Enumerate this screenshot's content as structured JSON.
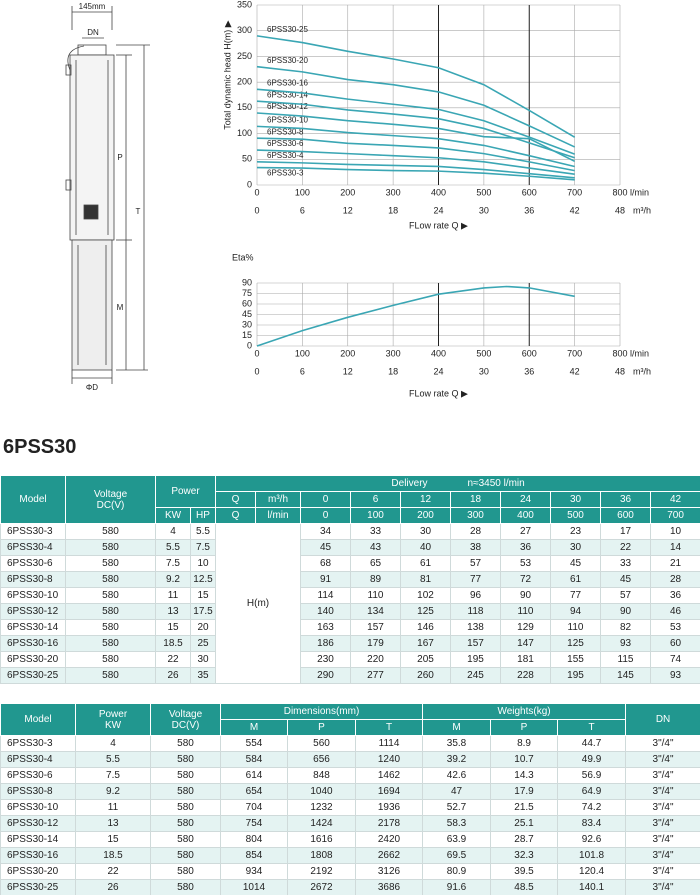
{
  "drawing": {
    "width": "145mm",
    "dn": "DN",
    "p": "P",
    "t": "T",
    "m": "M",
    "d": "ΦD"
  },
  "chart_data": [
    {
      "type": "line",
      "ylabel": "Total dynamic head H(m) ▶",
      "xlabel": "FLow rate Q ▶",
      "xunit": "l/min",
      "x2unit": "m³/h",
      "xlim": [
        0,
        800
      ],
      "xticks": [
        0,
        100,
        200,
        300,
        400,
        500,
        600,
        700,
        800
      ],
      "x2lim": [
        0,
        48
      ],
      "x2ticks": [
        0,
        6,
        12,
        18,
        24,
        30,
        36,
        42,
        48
      ],
      "ylim": [
        0,
        350
      ],
      "yticks": [
        0,
        50,
        100,
        150,
        200,
        250,
        300,
        350
      ],
      "grid": true,
      "highlight_x": [
        400,
        600
      ],
      "x": [
        0,
        100,
        200,
        300,
        400,
        500,
        600,
        700
      ],
      "series": [
        {
          "name": "6PSS30-3",
          "color": "#3aa6b4",
          "values": [
            34,
            33,
            30,
            28,
            27,
            23,
            17,
            10
          ]
        },
        {
          "name": "6PSS30-4",
          "color": "#3aa6b4",
          "values": [
            45,
            43,
            40,
            38,
            36,
            30,
            22,
            14
          ]
        },
        {
          "name": "6PSS30-6",
          "color": "#3aa6b4",
          "values": [
            68,
            65,
            61,
            57,
            53,
            45,
            33,
            21
          ]
        },
        {
          "name": "6PSS30-8",
          "color": "#3aa6b4",
          "values": [
            91,
            89,
            81,
            77,
            72,
            61,
            45,
            28
          ]
        },
        {
          "name": "6PSS30-10",
          "color": "#3aa6b4",
          "values": [
            114,
            110,
            102,
            96,
            90,
            77,
            57,
            36
          ]
        },
        {
          "name": "6PSS30-12",
          "color": "#3aa6b4",
          "values": [
            140,
            134,
            125,
            118,
            110,
            94,
            90,
            46
          ]
        },
        {
          "name": "6PSS30-14",
          "color": "#3aa6b4",
          "values": [
            163,
            157,
            146,
            138,
            129,
            110,
            82,
            53
          ]
        },
        {
          "name": "6PSS30-16",
          "color": "#3aa6b4",
          "values": [
            186,
            179,
            167,
            157,
            147,
            125,
            93,
            60
          ]
        },
        {
          "name": "6PSS30-20",
          "color": "#3aa6b4",
          "values": [
            230,
            220,
            205,
            195,
            181,
            155,
            115,
            74
          ]
        },
        {
          "name": "6PSS30-25",
          "color": "#3aa6b4",
          "values": [
            290,
            277,
            260,
            245,
            228,
            195,
            145,
            93
          ]
        }
      ]
    },
    {
      "type": "line",
      "ylabel": "Eta%",
      "xlabel": "FLow rate Q ▶",
      "xunit": "l/min",
      "x2unit": "m³/h",
      "xlim": [
        0,
        800
      ],
      "xticks": [
        0,
        100,
        200,
        300,
        400,
        500,
        600,
        700,
        800
      ],
      "x2lim": [
        0,
        48
      ],
      "x2ticks": [
        0,
        6,
        12,
        18,
        24,
        30,
        36,
        42,
        48
      ],
      "ylim": [
        0,
        90
      ],
      "yticks": [
        0,
        15,
        30,
        45,
        60,
        75,
        90
      ],
      "grid": true,
      "highlight_x": [
        400,
        600
      ],
      "x": [
        0,
        100,
        200,
        300,
        400,
        500,
        550,
        600,
        700
      ],
      "values": [
        0,
        22,
        41,
        58,
        74,
        83,
        85,
        83,
        71
      ],
      "color": "#3aa6b4"
    }
  ],
  "title": "6PSS30",
  "table1": {
    "headers": {
      "model": "Model",
      "voltage": "Voltage\nDC(V)",
      "power": "Power",
      "kw": "KW",
      "hp": "HP",
      "delivery": "Delivery",
      "speed": "n≈3450 l/min",
      "q": "Q",
      "m3h": "m³/h",
      "lmin": "l/min",
      "head": "H(m)"
    },
    "q_m3h": [
      0,
      6,
      12,
      18,
      24,
      30,
      36,
      42
    ],
    "q_lmin": [
      0,
      100,
      200,
      300,
      400,
      500,
      600,
      700
    ],
    "rows": [
      [
        "6PSS30-3",
        580,
        4,
        5.5,
        34,
        33,
        30,
        28,
        27,
        23,
        17,
        10
      ],
      [
        "6PSS30-4",
        580,
        5.5,
        7.5,
        45,
        43,
        40,
        38,
        36,
        30,
        22,
        14
      ],
      [
        "6PSS30-6",
        580,
        7.5,
        10,
        68,
        65,
        61,
        57,
        53,
        45,
        33,
        21
      ],
      [
        "6PSS30-8",
        580,
        9.2,
        12.5,
        91,
        89,
        81,
        77,
        72,
        61,
        45,
        28
      ],
      [
        "6PSS30-10",
        580,
        11,
        15,
        114,
        110,
        102,
        96,
        90,
        77,
        57,
        36
      ],
      [
        "6PSS30-12",
        580,
        13,
        17.5,
        140,
        134,
        125,
        118,
        110,
        94,
        90,
        46
      ],
      [
        "6PSS30-14",
        580,
        15,
        20,
        163,
        157,
        146,
        138,
        129,
        110,
        82,
        53
      ],
      [
        "6PSS30-16",
        580,
        18.5,
        25,
        186,
        179,
        167,
        157,
        147,
        125,
        93,
        60
      ],
      [
        "6PSS30-20",
        580,
        22,
        30,
        230,
        220,
        205,
        195,
        181,
        155,
        115,
        74
      ],
      [
        "6PSS30-25",
        580,
        26,
        35,
        290,
        277,
        260,
        245,
        228,
        195,
        145,
        93
      ]
    ]
  },
  "table2": {
    "headers": {
      "model": "Model",
      "power": "Power\nKW",
      "voltage": "Voltage\nDC(V)",
      "dimensions": "Dimensions(mm)",
      "weights": "Weights(kg)",
      "dn": "DN",
      "dim_cols": [
        "M",
        "P",
        "T"
      ],
      "weight_cols": [
        "M",
        "P",
        "T"
      ]
    },
    "rows": [
      [
        "6PSS30-3",
        4,
        580,
        554,
        560,
        1114,
        35.8,
        8.9,
        44.7,
        "3\"/4\""
      ],
      [
        "6PSS30-4",
        5.5,
        580,
        584,
        656,
        1240,
        39.2,
        10.7,
        49.9,
        "3\"/4\""
      ],
      [
        "6PSS30-6",
        7.5,
        580,
        614,
        848,
        1462,
        42.6,
        14.3,
        56.9,
        "3\"/4\""
      ],
      [
        "6PSS30-8",
        9.2,
        580,
        654,
        1040,
        1694,
        47,
        17.9,
        64.9,
        "3\"/4\""
      ],
      [
        "6PSS30-10",
        11,
        580,
        704,
        1232,
        1936,
        52.7,
        21.5,
        74.2,
        "3\"/4\""
      ],
      [
        "6PSS30-12",
        13,
        580,
        754,
        1424,
        2178,
        58.3,
        25.1,
        83.4,
        "3\"/4\""
      ],
      [
        "6PSS30-14",
        15,
        580,
        804,
        1616,
        2420,
        63.9,
        28.7,
        92.6,
        "3\"/4\""
      ],
      [
        "6PSS30-16",
        18.5,
        580,
        854,
        1808,
        2662,
        69.5,
        32.3,
        101.8,
        "3\"/4\""
      ],
      [
        "6PSS30-20",
        22,
        580,
        934,
        2192,
        3126,
        80.9,
        39.5,
        120.4,
        "3\"/4\""
      ],
      [
        "6PSS30-25",
        26,
        580,
        1014,
        2672,
        3686,
        91.6,
        48.5,
        140.1,
        "3\"/4\""
      ]
    ]
  }
}
